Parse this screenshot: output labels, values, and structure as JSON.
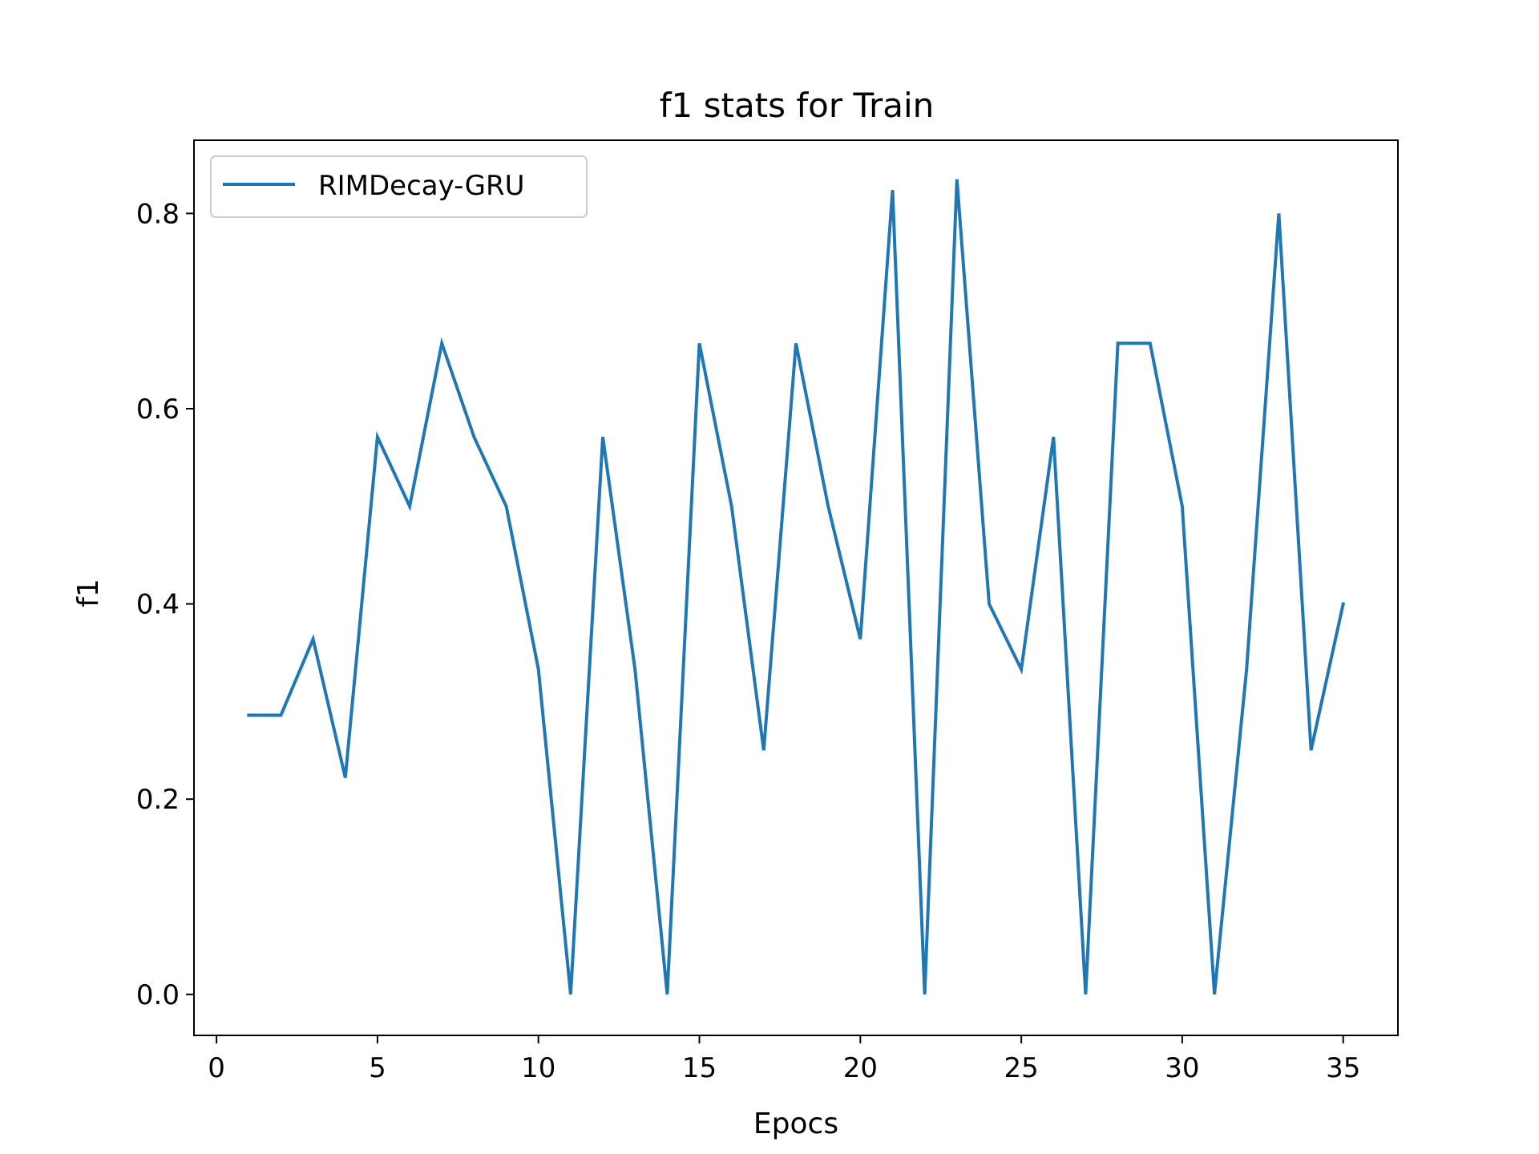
{
  "chart_data": {
    "type": "line",
    "title": "f1 stats for Train",
    "xlabel": "Epocs",
    "ylabel": "f1",
    "xlim": [
      -0.7,
      36.7
    ],
    "ylim": [
      -0.042,
      0.875
    ],
    "xticks": [
      0,
      5,
      10,
      15,
      20,
      25,
      30,
      35
    ],
    "yticks": [
      0.0,
      0.2,
      0.4,
      0.6,
      0.8
    ],
    "xtick_labels": [
      "0",
      "5",
      "10",
      "15",
      "20",
      "25",
      "30",
      "35"
    ],
    "ytick_labels": [
      "0.0",
      "0.2",
      "0.4",
      "0.6",
      "0.8"
    ],
    "grid": false,
    "legend_position": "top-left",
    "series": [
      {
        "name": "RIMDecay-GRU",
        "color": "#1f77b4",
        "x": [
          1,
          2,
          3,
          4,
          5,
          6,
          7,
          8,
          9,
          10,
          11,
          12,
          13,
          14,
          15,
          16,
          17,
          18,
          19,
          20,
          21,
          22,
          23,
          24,
          25,
          26,
          27,
          28,
          29,
          30,
          31,
          32,
          33,
          34,
          35
        ],
        "values": [
          0.286,
          0.286,
          0.364,
          0.222,
          0.571,
          0.5,
          0.667,
          0.571,
          0.5,
          0.333,
          0.0,
          0.571,
          0.333,
          0.0,
          0.667,
          0.5,
          0.25,
          0.667,
          0.5,
          0.364,
          0.824,
          0.0,
          0.835,
          0.4,
          0.333,
          0.571,
          0.0,
          0.667,
          0.667,
          0.5,
          0.0,
          0.333,
          0.8,
          0.25,
          0.4
        ]
      }
    ]
  }
}
